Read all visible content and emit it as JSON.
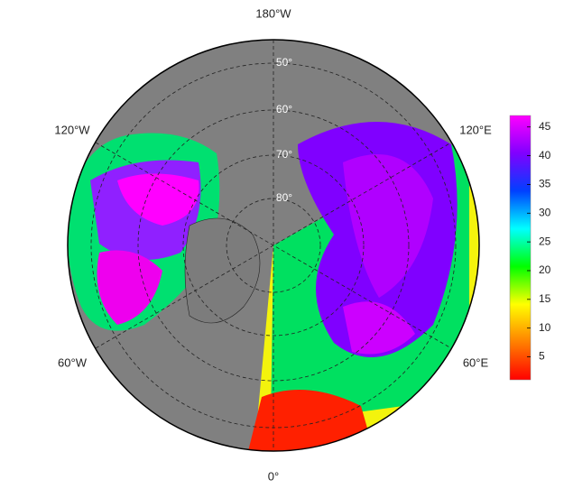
{
  "map": {
    "meridian_labels": [
      "180°W",
      "120°W",
      "120°E",
      "60°W",
      "60°E",
      "0°"
    ],
    "parallel_labels": [
      "50°",
      "60°",
      "70°",
      "80°"
    ]
  },
  "colorbar": {
    "lim": [
      1,
      47
    ],
    "ticks": [
      5,
      10,
      15,
      20,
      25,
      30,
      35,
      40,
      45
    ],
    "colors": [
      "#ff0000",
      "#ff8000",
      "#ffff00",
      "#00ff00",
      "#00ffff",
      "#0040ff",
      "#8000ff",
      "#ff00ff"
    ]
  }
}
